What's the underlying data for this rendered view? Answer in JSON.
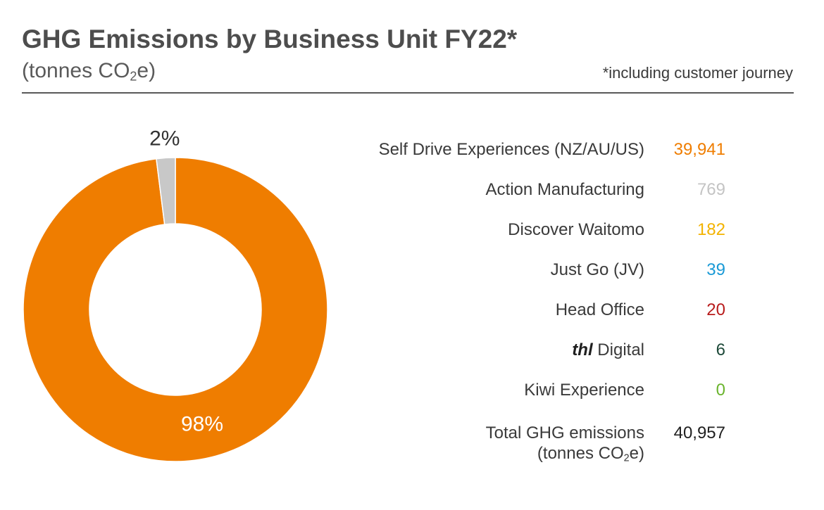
{
  "header": {
    "title": "GHG Emissions by Business Unit FY22*",
    "subtitle_prefix": "(tonnes CO",
    "subtitle_sub": "2",
    "subtitle_suffix": "e)",
    "footnote": "*including customer journey"
  },
  "chart_data": {
    "type": "pie",
    "style": "donut",
    "slices": [
      {
        "label": "98%",
        "value": 98,
        "color": "#ef7d00",
        "label_color": "#ffffff"
      },
      {
        "label": "2%",
        "value": 2,
        "color": "#c8c8c8",
        "label_color": "#333333"
      }
    ]
  },
  "legend": {
    "rows": [
      {
        "name": "Self Drive Experiences (NZ/AU/US)",
        "value": "39,941",
        "color": "#ef7d00"
      },
      {
        "name": "Action Manufacturing",
        "value": "769",
        "color": "#c4c4c4"
      },
      {
        "name": "Discover Waitomo",
        "value": "182",
        "color": "#f3b300"
      },
      {
        "name": "Just Go (JV)",
        "value": "39",
        "color": "#1a9ad6"
      },
      {
        "name": "Head Office",
        "value": "20",
        "color": "#b81c1c"
      },
      {
        "name_brand": "thl",
        "name": " Digital",
        "value": "6",
        "color": "#1e4a3a"
      },
      {
        "name": "Kiwi Experience",
        "value": "0",
        "color": "#6ab42d"
      }
    ],
    "total": {
      "line1": "Total GHG emissions",
      "line2_prefix": "(tonnes CO",
      "line2_sub": "2",
      "line2_suffix": "e)",
      "value": "40,957"
    }
  }
}
